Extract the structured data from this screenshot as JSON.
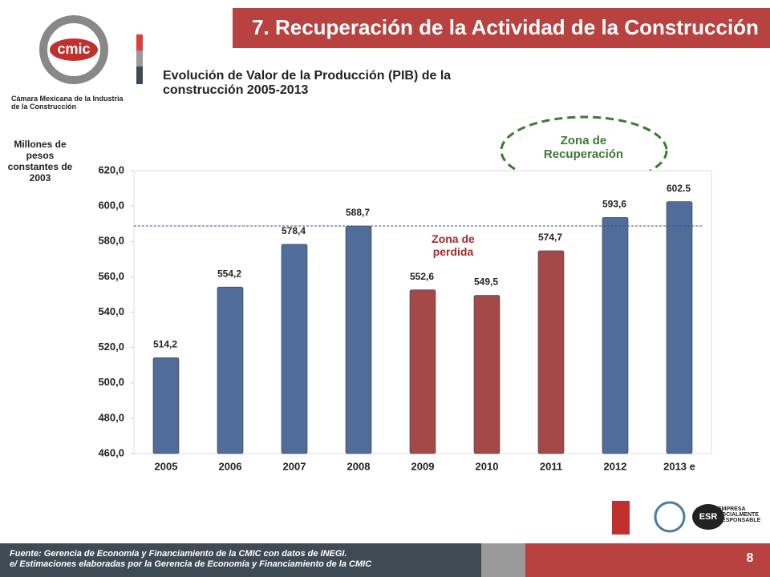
{
  "header": {
    "title": "7. Recuperación de la Actividad de la Construcción",
    "logo_text": "cmic",
    "logo_caption": "Cámara Mexicana de la Industria de la Construcción"
  },
  "chart_data": {
    "type": "bar",
    "title": "Evolución de Valor de la Producción (PIB) de la construcción 2005-2013",
    "y_label": "Millones de pesos constantes de 2003",
    "categories": [
      "2005",
      "2006",
      "2007",
      "2008",
      "2009",
      "2010",
      "2011",
      "2012",
      "2013 e"
    ],
    "values": [
      514.2,
      554.2,
      578.4,
      588.7,
      552.6,
      549.5,
      574.7,
      593.6,
      602.5
    ],
    "value_labels": [
      "514,2",
      "554,2",
      "578,4",
      "588,7",
      "552,6",
      "549,5",
      "574,7",
      "593,6",
      "602.5"
    ],
    "colors": [
      "#4f6d98",
      "#4f6d98",
      "#4f6d98",
      "#4f6d98",
      "#a34a48",
      "#a34a48",
      "#a34a48",
      "#4f6d98",
      "#4f6d98"
    ],
    "ylim": [
      460,
      620
    ],
    "yticks": [
      {
        "value": 460,
        "label": "460,0"
      },
      {
        "value": 480,
        "label": "480,0"
      },
      {
        "value": 500,
        "label": "500,0"
      },
      {
        "value": 520,
        "label": "520,0"
      },
      {
        "value": 540,
        "label": "540,0"
      },
      {
        "value": 560,
        "label": "560,0"
      },
      {
        "value": 580,
        "label": "580,0"
      },
      {
        "value": 600,
        "label": "600,0"
      },
      {
        "value": 620,
        "label": "620,0"
      }
    ],
    "reference_line": 588.7,
    "annotations": [
      "Zona de perdida",
      "Zona de Recuperación"
    ]
  },
  "footer": {
    "source": "Fuente: Gerencia de Economía y Financiamiento de la CMIC con datos de INEGI.",
    "note": "e/ Estimaciones elaboradas por la Gerencia de Economía y Financiamiento de la CMIC",
    "page": "8",
    "badge": "ESR",
    "badge_caption": "EMPRESA SOCIALMENTE RESPONSABLE"
  }
}
